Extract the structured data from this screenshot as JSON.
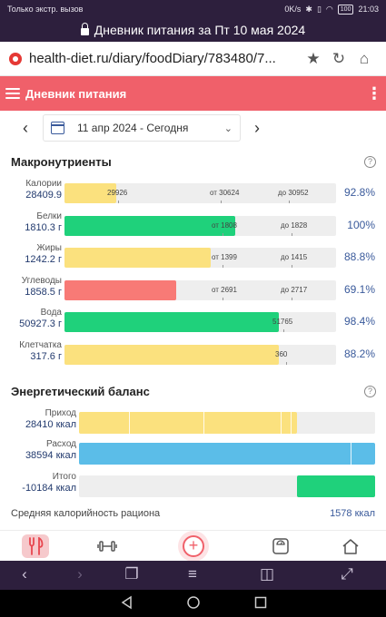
{
  "status": {
    "left": "Только экстр. вызов",
    "speed": "0K/s",
    "battery": "100",
    "time": "21:03"
  },
  "browser": {
    "title": "Дневник питания за Пт 10 мая 2024",
    "url": "health-diet.ru/diary/foodDiary/783480/7..."
  },
  "app": {
    "title": "Дневник питания"
  },
  "date": {
    "label": "11 апр 2024 - Сегодня"
  },
  "macros": {
    "title": "Макронутриенты",
    "items": [
      {
        "name": "Калории",
        "value": "28409.9",
        "progress": 0.19,
        "color": "#fbe17e",
        "ticks": [
          "29926",
          "от 30624",
          "до 30952"
        ],
        "percent": "92.8%"
      },
      {
        "name": "Белки",
        "value": "1810.3 г",
        "progress": 0.63,
        "color": "#1fd17b",
        "ticks": [
          "от 1808",
          "до 1828"
        ],
        "percent": "100%"
      },
      {
        "name": "Жиры",
        "value": "1242.2 г",
        "progress": 0.54,
        "color": "#fbe17e",
        "ticks": [
          "от 1399",
          "до 1415"
        ],
        "percent": "88.8%"
      },
      {
        "name": "Углеводы",
        "value": "1858.5 г",
        "progress": 0.41,
        "color": "#f87a76",
        "ticks": [
          "от 2691",
          "до 2717"
        ],
        "percent": "69.1%"
      },
      {
        "name": "Вода",
        "value": "50927.3 г",
        "progress": 0.79,
        "color": "#1fd17b",
        "ticks": [
          "51765"
        ],
        "percent": "98.4%"
      },
      {
        "name": "Клетчатка",
        "value": "317.6 г",
        "progress": 0.79,
        "color": "#fbe17e",
        "ticks": [
          "360"
        ],
        "percent": "88.2%"
      }
    ]
  },
  "energy": {
    "title": "Энергетический баланс",
    "items": [
      {
        "name": "Приход",
        "value": "28410 ккал"
      },
      {
        "name": "Расход",
        "value": "38594 ккал"
      },
      {
        "name": "Итого",
        "value": "-10184 ккал"
      }
    ],
    "avg_label": "Средняя калорийность рациона",
    "avg_value": "1578 ккал"
  },
  "colors": {
    "accent": "#f0606a",
    "dark": "#2d1f3d",
    "link": "#3a5a9b",
    "yellow": "#fbe17e",
    "green": "#1fd17b",
    "red": "#f87a76",
    "blue": "#5bbde8"
  }
}
